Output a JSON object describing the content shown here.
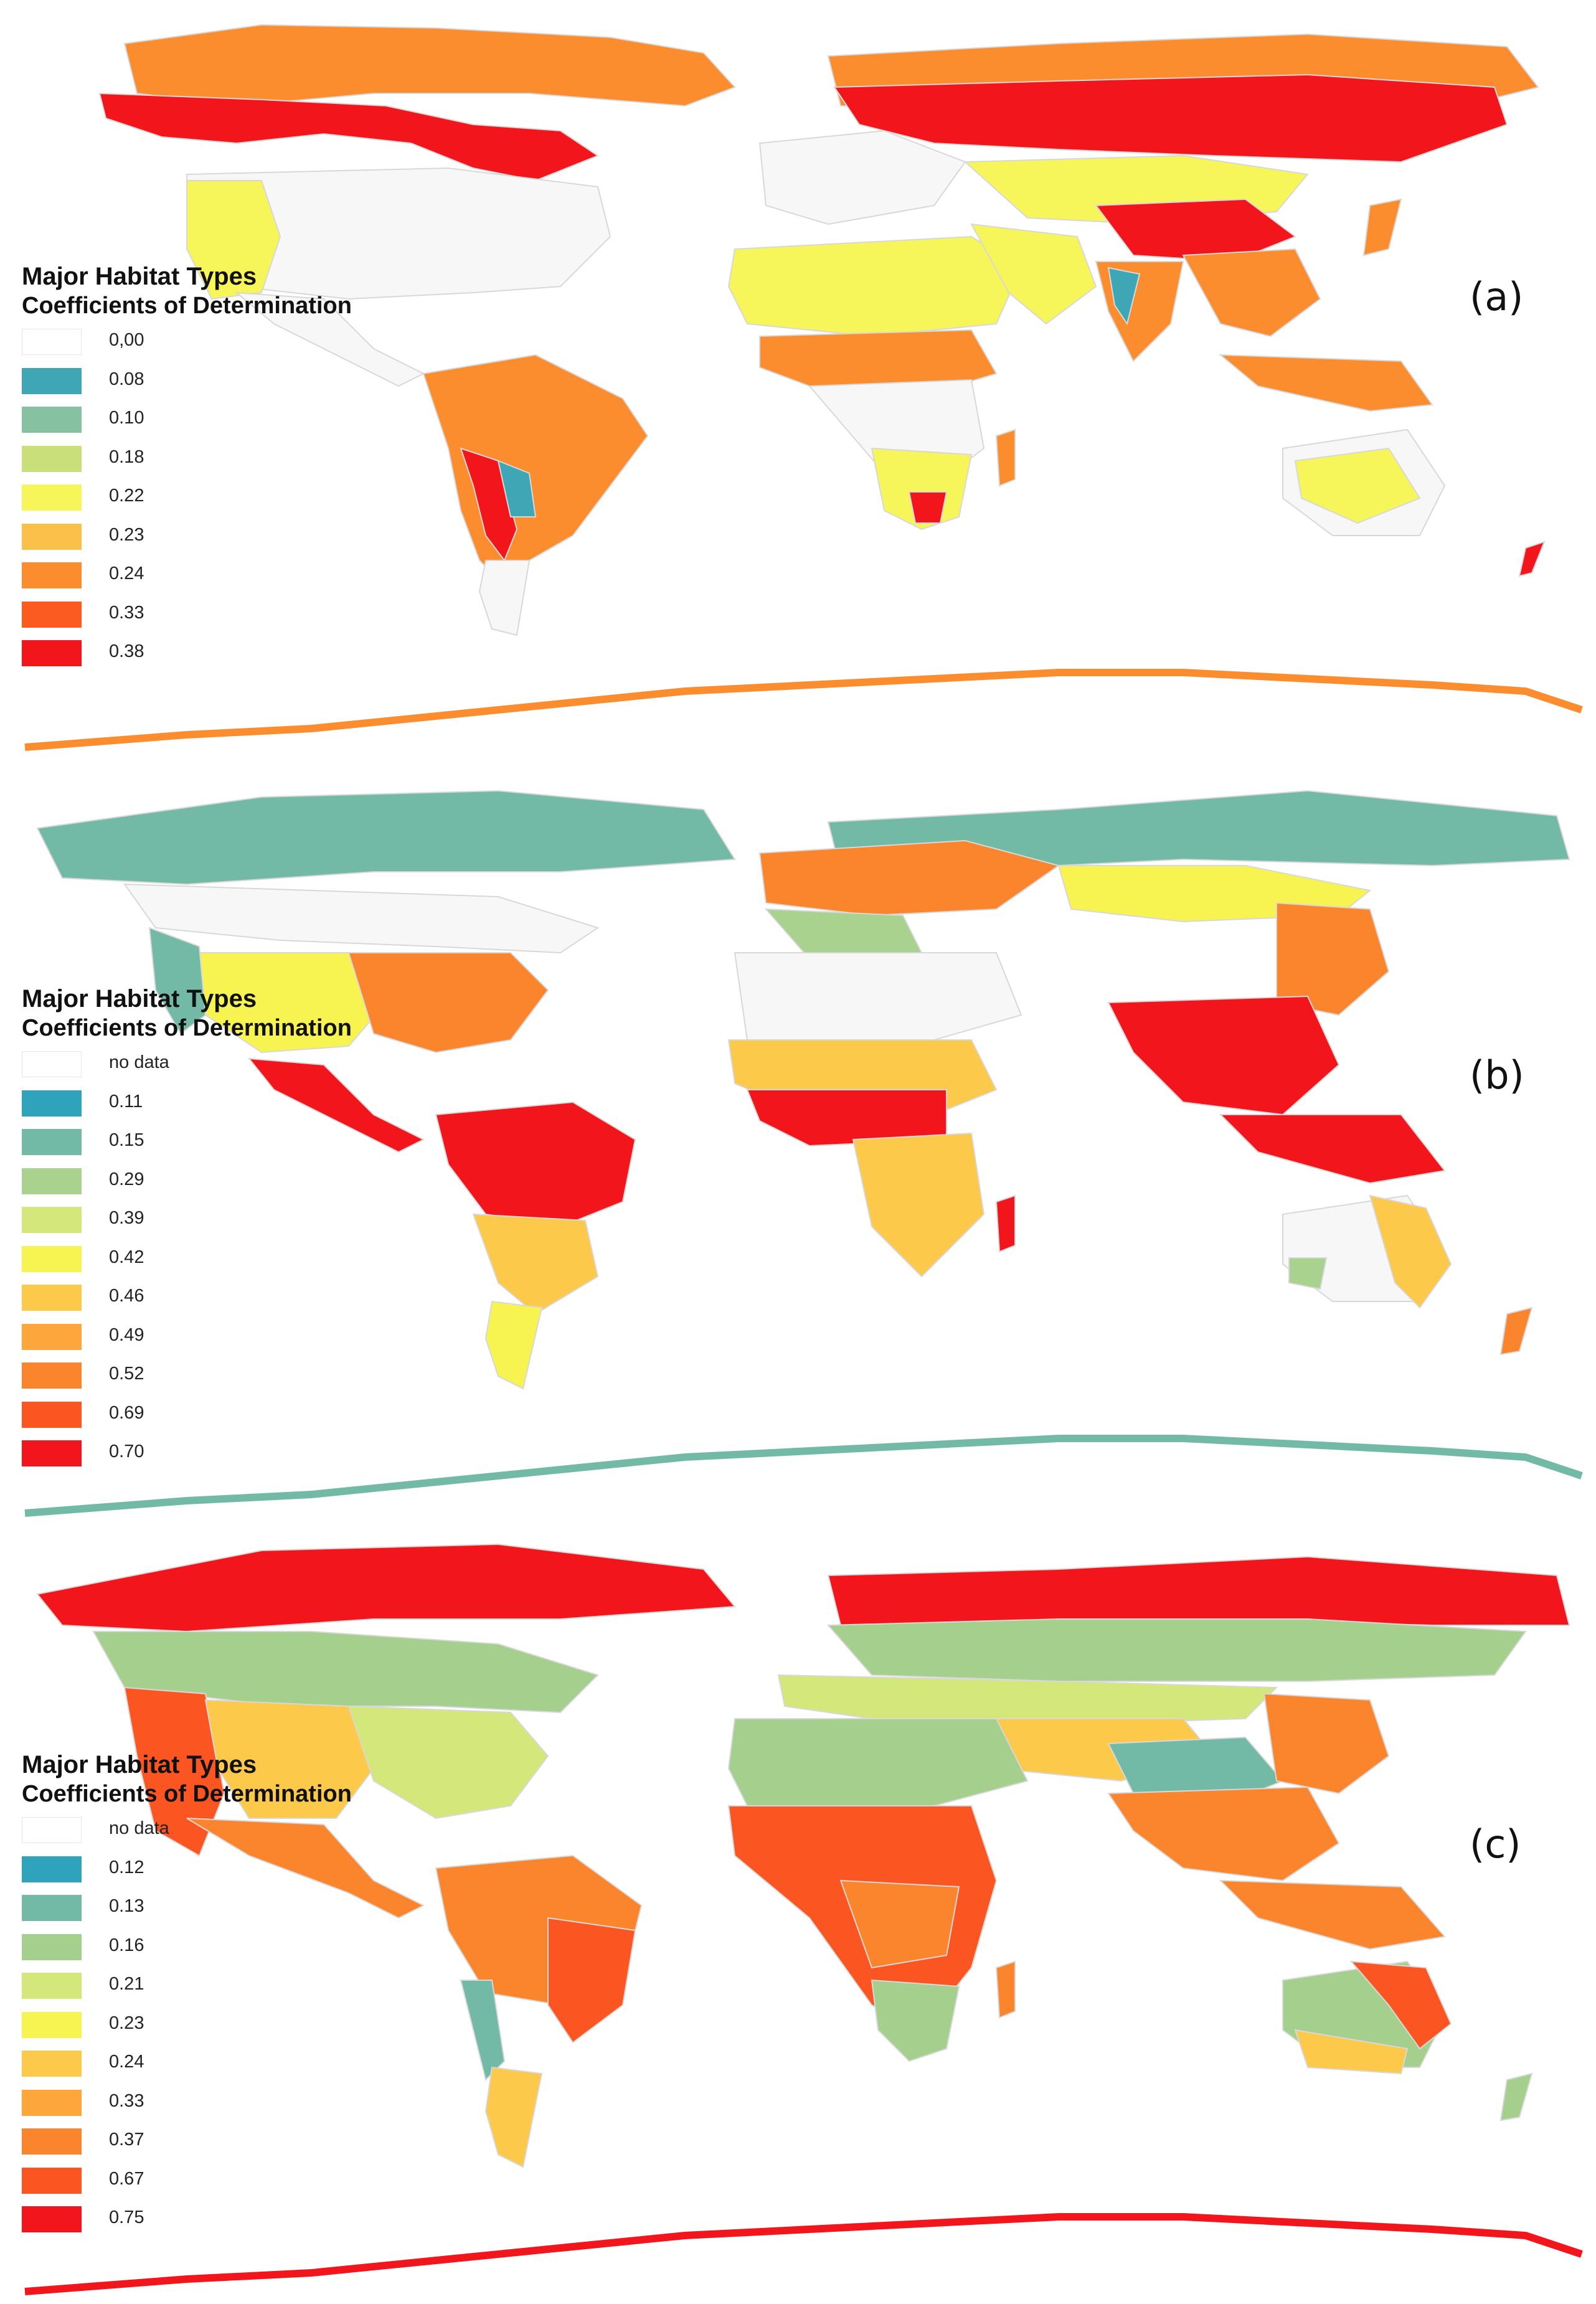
{
  "panels": [
    {
      "label": "(a)",
      "legend_title": "Major Habitat Types",
      "legend_subtitle": "Coefficients of Determination",
      "legend": [
        {
          "label": "0,00",
          "color": "#ffffff"
        },
        {
          "label": "0.08",
          "color": "#3fa6b6"
        },
        {
          "label": "0.10",
          "color": "#86c1a2"
        },
        {
          "label": "0.18",
          "color": "#c9e07a"
        },
        {
          "label": "0.22",
          "color": "#f6f55a"
        },
        {
          "label": "0.23",
          "color": "#fbc04a"
        },
        {
          "label": "0.24",
          "color": "#fb8d2e"
        },
        {
          "label": "0.33",
          "color": "#fb5a20"
        },
        {
          "label": "0.38",
          "color": "#f2151b"
        }
      ]
    },
    {
      "label": "(b)",
      "legend_title": "Major Habitat Types",
      "legend_subtitle": "Coefficients of Determination",
      "legend": [
        {
          "label": "no data",
          "color": "#ffffff"
        },
        {
          "label": "0.11",
          "color": "#2fa3bb"
        },
        {
          "label": "0.15",
          "color": "#72b9a6"
        },
        {
          "label": "0.29",
          "color": "#a9d28e"
        },
        {
          "label": "0.39",
          "color": "#d4e77a"
        },
        {
          "label": "0.42",
          "color": "#f7f451"
        },
        {
          "label": "0.46",
          "color": "#fcc94a"
        },
        {
          "label": "0.49",
          "color": "#fca63c"
        },
        {
          "label": "0.52",
          "color": "#fb852c"
        },
        {
          "label": "0.69",
          "color": "#fb5521"
        },
        {
          "label": "0.70",
          "color": "#f2151b"
        }
      ]
    },
    {
      "label": "(c)",
      "legend_title": "Major Habitat Types",
      "legend_subtitle": "Coefficients of Determination",
      "legend": [
        {
          "label": "no data",
          "color": "#ffffff"
        },
        {
          "label": "0.12",
          "color": "#2fa3bb"
        },
        {
          "label": "0.13",
          "color": "#72b9a6"
        },
        {
          "label": "0.16",
          "color": "#a5cf8c"
        },
        {
          "label": "0.21",
          "color": "#d4e77a"
        },
        {
          "label": "0.23",
          "color": "#f7f451"
        },
        {
          "label": "0.24",
          "color": "#fcc94a"
        },
        {
          "label": "0.33",
          "color": "#fca63c"
        },
        {
          "label": "0.37",
          "color": "#fb852c"
        },
        {
          "label": "0.67",
          "color": "#fb5521"
        },
        {
          "label": "0.75",
          "color": "#f2151b"
        }
      ]
    }
  ]
}
